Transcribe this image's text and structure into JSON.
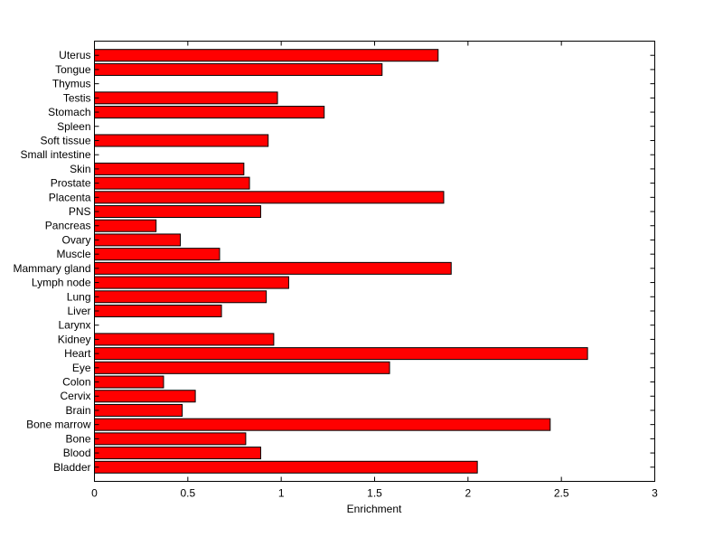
{
  "chart_data": {
    "type": "bar",
    "orientation": "horizontal",
    "title": "",
    "xlabel": "Enrichment",
    "ylabel": "",
    "xlim": [
      0,
      3
    ],
    "xticks": [
      0,
      0.5,
      1,
      1.5,
      2,
      2.5,
      3
    ],
    "xtick_labels": [
      "0",
      "0.5",
      "1",
      "1.5",
      "2",
      "2.5",
      "3"
    ],
    "grid": false,
    "bar_color": "#ff0000",
    "categories": [
      "Uterus",
      "Tongue",
      "Thymus",
      "Testis",
      "Stomach",
      "Spleen",
      "Soft tissue",
      "Small intestine",
      "Skin",
      "Prostate",
      "Placenta",
      "PNS",
      "Pancreas",
      "Ovary",
      "Muscle",
      "Mammary gland",
      "Lymph node",
      "Lung",
      "Liver",
      "Larynx",
      "Kidney",
      "Heart",
      "Eye",
      "Colon",
      "Cervix",
      "Brain",
      "Bone marrow",
      "Bone",
      "Blood",
      "Bladder"
    ],
    "values": [
      1.84,
      1.54,
      0,
      0.98,
      1.23,
      0,
      0.93,
      0,
      0.8,
      0.83,
      1.87,
      0.89,
      0.33,
      0.46,
      0.67,
      1.91,
      1.04,
      0.92,
      0.68,
      0,
      0.96,
      2.64,
      1.58,
      0.37,
      0.54,
      0.47,
      2.44,
      0.81,
      0.89,
      2.05
    ]
  }
}
